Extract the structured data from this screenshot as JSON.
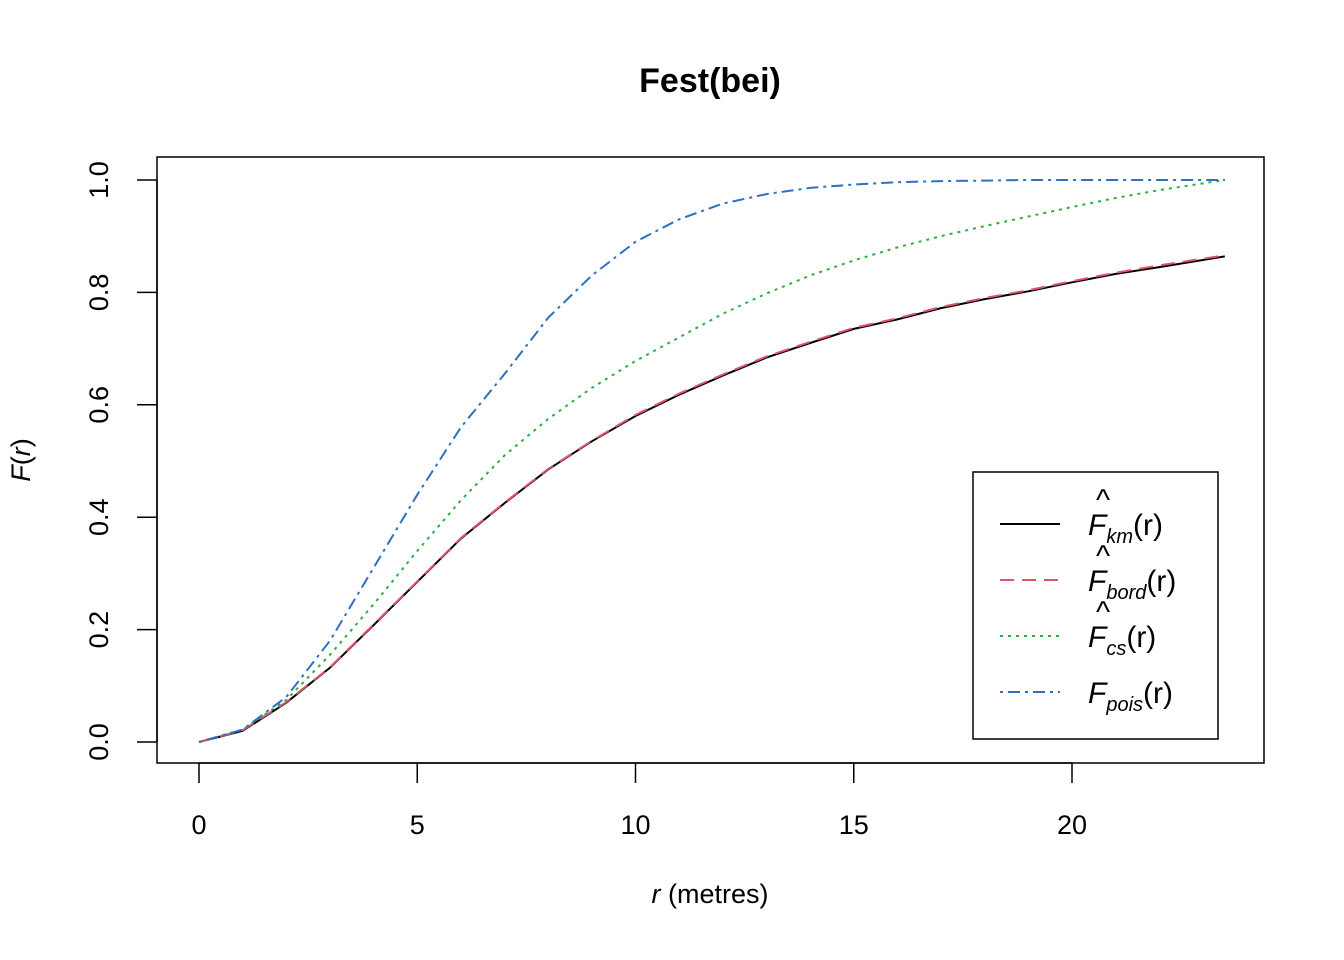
{
  "chart_data": {
    "type": "line",
    "title": "Fest(bei)",
    "xlabel": {
      "var": "r",
      "unit": " (metres)"
    },
    "ylabel": {
      "fn": "F",
      "open": "(",
      "var": "r",
      "close": ")"
    },
    "xlim": [
      0,
      23.5
    ],
    "ylim": [
      0,
      1.0
    ],
    "xticks": [
      0,
      5,
      10,
      15,
      20
    ],
    "xtick_labels": [
      "0",
      "5",
      "10",
      "15",
      "20"
    ],
    "yticks": [
      0,
      0.2,
      0.4,
      0.6,
      0.8,
      1.0
    ],
    "ytick_labels": [
      "0.0",
      "0.2",
      "0.4",
      "0.6",
      "0.8",
      "1.0"
    ],
    "grid": false,
    "legend_position": "bottom-right",
    "x": [
      0,
      1,
      2,
      3,
      4,
      5,
      6,
      7,
      8,
      9,
      10,
      11,
      12,
      13,
      14,
      15,
      16,
      17,
      18,
      19,
      20,
      21,
      22,
      23.5
    ],
    "series": [
      {
        "name": "F̂km(r)",
        "label": {
          "hat": "^",
          "base": "F",
          "sub": "km",
          "arg": "(r)"
        },
        "color": "#000000",
        "dash": "solid",
        "values": [
          0,
          0.02,
          0.07,
          0.132,
          0.208,
          0.285,
          0.362,
          0.425,
          0.485,
          0.535,
          0.58,
          0.618,
          0.652,
          0.684,
          0.71,
          0.735,
          0.752,
          0.772,
          0.788,
          0.802,
          0.818,
          0.833,
          0.845,
          0.864
        ]
      },
      {
        "name": "F̂bord(r)",
        "label": {
          "hat": "^",
          "base": "F",
          "sub": "bord",
          "arg": "(r)"
        },
        "color": "#df536b",
        "dash": "dashed",
        "values": [
          0,
          0.021,
          0.071,
          0.133,
          0.209,
          0.286,
          0.363,
          0.426,
          0.486,
          0.536,
          0.582,
          0.62,
          0.654,
          0.686,
          0.712,
          0.737,
          0.754,
          0.774,
          0.79,
          0.804,
          0.82,
          0.835,
          0.848,
          0.866
        ]
      },
      {
        "name": "F̂cs(r)",
        "label": {
          "hat": "^",
          "base": "F",
          "sub": "cs",
          "arg": "(r)"
        },
        "color": "#28b040",
        "dash": "dotted",
        "values": [
          0,
          0.022,
          0.075,
          0.155,
          0.245,
          0.34,
          0.43,
          0.51,
          0.575,
          0.63,
          0.678,
          0.72,
          0.762,
          0.798,
          0.83,
          0.857,
          0.88,
          0.9,
          0.918,
          0.935,
          0.952,
          0.968,
          0.982,
          1.0
        ]
      },
      {
        "name": "Fpois(r)",
        "label": {
          "hat": "",
          "base": "F",
          "sub": "pois",
          "arg": "(r)"
        },
        "color": "#2f6fc4",
        "dash": "dotdash",
        "values": [
          0,
          0.022,
          0.08,
          0.18,
          0.31,
          0.44,
          0.56,
          0.655,
          0.755,
          0.83,
          0.89,
          0.93,
          0.958,
          0.975,
          0.986,
          0.992,
          0.996,
          0.998,
          0.999,
          1.0,
          1.0,
          1.0,
          1.0,
          1.0
        ]
      }
    ]
  }
}
